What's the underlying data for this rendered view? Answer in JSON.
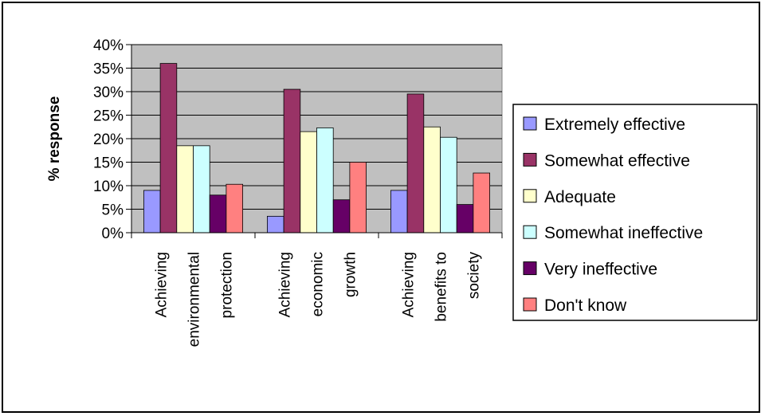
{
  "chart_data": {
    "type": "bar",
    "title": "",
    "ylabel": "% response",
    "xlabel": "",
    "ylim": [
      0,
      40
    ],
    "yticks": [
      "0%",
      "5%",
      "10%",
      "15%",
      "20%",
      "25%",
      "30%",
      "35%",
      "40%"
    ],
    "grid": true,
    "legend_position": "right",
    "plot_background": "#c0c0c0",
    "categories": [
      [
        "Achieving",
        "environmental",
        "protection"
      ],
      [
        "Achieving",
        "economic",
        "growth"
      ],
      [
        "Achieving",
        "benefits to",
        "society"
      ]
    ],
    "series": [
      {
        "name": "Extremely effective",
        "color": "#9999ff",
        "values": [
          9,
          3.5,
          9
        ]
      },
      {
        "name": "Somewhat effective",
        "color": "#993366",
        "values": [
          36,
          30.5,
          29.5
        ]
      },
      {
        "name": "Adequate",
        "color": "#ffffcc",
        "values": [
          18.5,
          21.5,
          22.5
        ]
      },
      {
        "name": "Somewhat ineffective",
        "color": "#ccffff",
        "values": [
          18.5,
          22.3,
          20.3
        ]
      },
      {
        "name": "Very ineffective",
        "color": "#660066",
        "values": [
          8,
          7,
          6
        ]
      },
      {
        "name": "Don't know",
        "color": "#ff8080",
        "values": [
          10.3,
          15,
          12.7
        ]
      }
    ]
  }
}
